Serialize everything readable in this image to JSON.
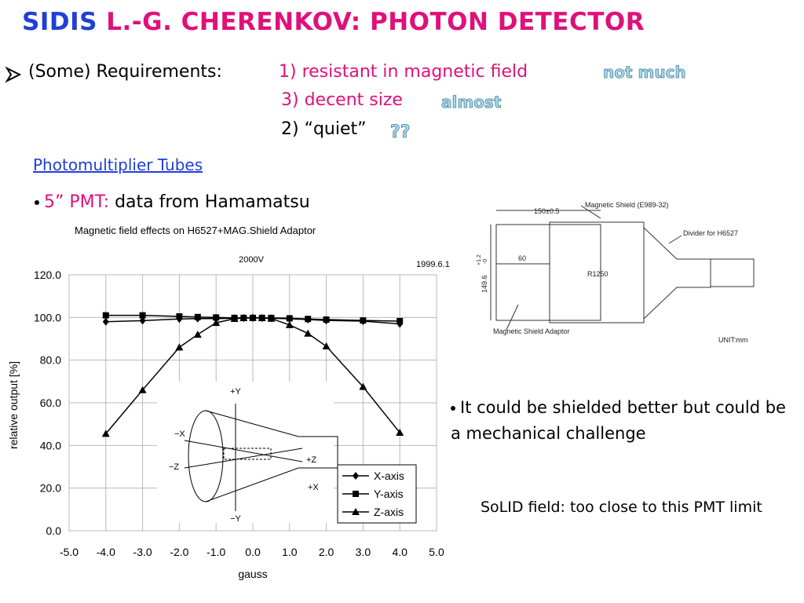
{
  "title": {
    "lead": "SIDIS",
    "rest": "L.-G. CHERENKOV: PHOTON DETECTOR"
  },
  "requirements": {
    "label": "(Some) Requirements:",
    "items": [
      {
        "text": "1) resistant in magnetic field",
        "note": "not much"
      },
      {
        "text": "3) decent size",
        "note": "almost"
      },
      {
        "text": "2) “quiet”",
        "note": "??"
      }
    ]
  },
  "section_heading": "Photomultiplier Tubes",
  "pmt_bullet": {
    "label": "5” PMT:",
    "text": "data from Hamamatsu"
  },
  "chart_data": {
    "type": "line",
    "title": "Magnetic field effects on H6527+MAG.Shield Adaptor",
    "subtitle": "2000V",
    "date": "1999.6.1",
    "x_label": "gauss",
    "y_label": "relative output [%]",
    "x": [
      -4,
      -3,
      -2,
      -1.5,
      -1,
      -0.5,
      -0.25,
      0,
      0.25,
      0.5,
      1,
      1.5,
      2,
      3,
      4
    ],
    "series": [
      {
        "name": "X-axis",
        "color": "#000000",
        "marker": "diamond",
        "values": [
          98,
          98.5,
          99.3,
          99.5,
          99.5,
          99.6,
          99.7,
          99.8,
          99.7,
          99.6,
          99.4,
          99,
          98.6,
          98.3,
          97
        ]
      },
      {
        "name": "Y-axis",
        "color": "#000000",
        "marker": "square",
        "values": [
          101,
          101,
          100.5,
          100.2,
          100,
          99.8,
          99.8,
          99.8,
          99.8,
          99.8,
          99.6,
          99.3,
          99,
          98.6,
          98.3
        ]
      },
      {
        "name": "Z-axis",
        "color": "#000000",
        "marker": "triangle",
        "values": [
          45.5,
          66,
          86,
          92,
          97.5,
          99.4,
          99.8,
          100,
          99.8,
          99.5,
          96.5,
          92.5,
          86.5,
          67.5,
          46
        ]
      }
    ],
    "xlim": [
      -5,
      5
    ],
    "xticks": [
      {
        "value": -5,
        "label": "-5.0"
      },
      {
        "value": -4,
        "label": "-4.0"
      },
      {
        "value": -3,
        "label": "-3.0"
      },
      {
        "value": -2,
        "label": "-2.0"
      },
      {
        "value": -1,
        "label": "-1.0"
      },
      {
        "value": 0,
        "label": "0.0"
      },
      {
        "value": 1,
        "label": "1.0"
      },
      {
        "value": 2,
        "label": "2.0"
      },
      {
        "value": 3,
        "label": "3.0"
      },
      {
        "value": 4,
        "label": "4.0"
      },
      {
        "value": 5,
        "label": "5.0"
      }
    ],
    "ylim": [
      0,
      120
    ],
    "yticks": [
      {
        "value": 0,
        "label": "0.0"
      },
      {
        "value": 20,
        "label": "20.0"
      },
      {
        "value": 40,
        "label": "40.0"
      },
      {
        "value": 60,
        "label": "60.0"
      },
      {
        "value": 80,
        "label": "80.0"
      },
      {
        "value": 100,
        "label": "100.0"
      },
      {
        "value": 120,
        "label": "120.0"
      }
    ],
    "grid": true,
    "legend": "lower right"
  },
  "inset_axes": {
    "plus_y": "+Y",
    "minus_x": "−X",
    "minus_z": "−Z",
    "plus_z": "+Z",
    "plus_x": "+X",
    "minus_y": "−Y"
  },
  "drawing": {
    "shield": "Magnetic Shield (E989-32)",
    "length": "150±0.5",
    "divider": "Divider for H6527",
    "offset": "60",
    "tube": "R1250",
    "diameter": "149.6",
    "tol_plus": "+1.2",
    "tol_minus": "-0",
    "adaptor": "Magnetic Shield Adaptor",
    "unit": "UNIT:mm"
  },
  "notes": [
    "It could be shielded better but could be a mechanical challenge",
    "SoLID field: too close to this PMT limit"
  ]
}
